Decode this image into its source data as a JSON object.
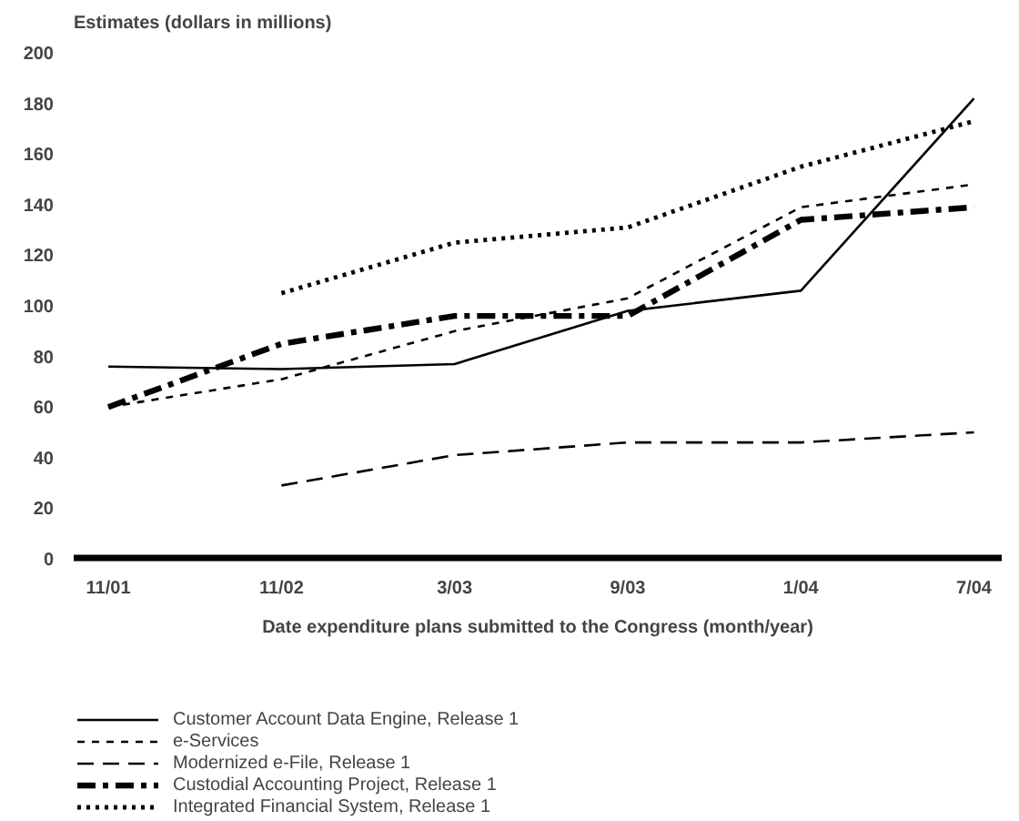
{
  "chart_data": {
    "type": "line",
    "ylabel": "Estimates (dollars in millions)",
    "xlabel": "Date expenditure plans submitted to the Congress (month/year)",
    "categories": [
      "11/01",
      "11/02",
      "3/03",
      "9/03",
      "1/04",
      "7/04"
    ],
    "ylim": [
      0,
      200
    ],
    "yticks": [
      0,
      20,
      40,
      60,
      80,
      100,
      120,
      140,
      160,
      180,
      200
    ],
    "legend": "bottom",
    "series": [
      {
        "name": "Customer Account Data Engine, Release 1",
        "color": "#000000",
        "line_style": "solid",
        "values": [
          76,
          75,
          77,
          98,
          106,
          182
        ]
      },
      {
        "name": "e-Services",
        "color": "#000000",
        "line_style": "dashed",
        "values": [
          60,
          71,
          90,
          103,
          139,
          148
        ]
      },
      {
        "name": "Modernized e-File, Release 1",
        "color": "#000000",
        "line_style": "longdash",
        "values": [
          null,
          29,
          41,
          46,
          46,
          50
        ]
      },
      {
        "name": "Custodial Accounting Project, Release 1",
        "color": "#000000",
        "line_style": "dashdot",
        "values": [
          60,
          85,
          96,
          96,
          134,
          139
        ]
      },
      {
        "name": "Integrated Financial System, Release 1",
        "color": "#000000",
        "line_style": "dotted",
        "values": [
          null,
          105,
          125,
          131,
          155,
          173
        ]
      }
    ]
  }
}
